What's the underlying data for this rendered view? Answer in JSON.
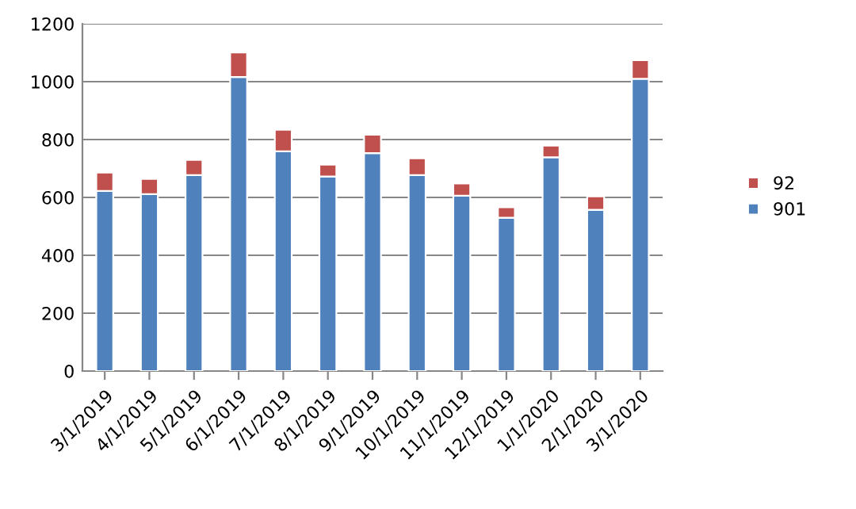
{
  "chart_data": {
    "type": "bar",
    "stacked": true,
    "categories": [
      "3/1/2019",
      "4/1/2019",
      "5/1/2019",
      "6/1/2019",
      "7/1/2019",
      "8/1/2019",
      "9/1/2019",
      "10/1/2019",
      "11/1/2019",
      "12/1/2019",
      "1/1/2020",
      "2/1/2020",
      "3/1/2020"
    ],
    "series": [
      {
        "name": "901",
        "color": "#4f81bd",
        "values": [
          622,
          611,
          677,
          1016,
          759,
          672,
          753,
          677,
          606,
          530,
          739,
          557,
          1010
        ]
      },
      {
        "name": "92",
        "color": "#c0504d",
        "values": [
          64,
          53,
          53,
          85,
          75,
          41,
          64,
          58,
          42,
          36,
          40,
          47,
          64
        ]
      }
    ],
    "ylim": [
      0,
      1200
    ],
    "yticks": [
      0,
      200,
      400,
      600,
      800,
      1000,
      1200
    ],
    "grid": "y",
    "legend": "right"
  }
}
